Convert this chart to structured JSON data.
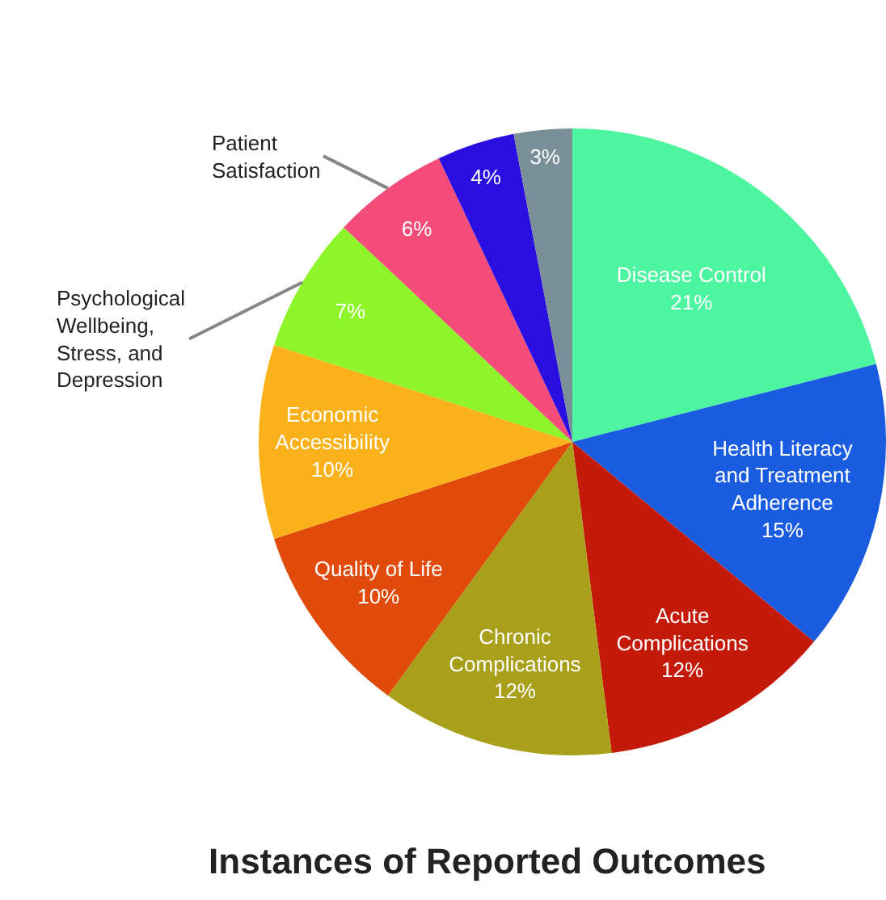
{
  "chart_data": {
    "type": "pie",
    "title": "Instances of Reported Outcomes",
    "categories": [
      "Disease Control",
      "Health Literacy and Treatment Adherence",
      "Acute Complications",
      "Chronic Complications",
      "Quality of Life",
      "Economic Accessibility",
      "Psychological Wellbeing, Stress, and Depression",
      "Patient Satisfaction",
      null,
      null
    ],
    "values": [
      21,
      15,
      12,
      12,
      10,
      10,
      7,
      6,
      4,
      3
    ],
    "colors": [
      "#4df5a0",
      "#1a5ce0",
      "#c41a0a",
      "#a8a01a",
      "#e04a0a",
      "#fbb21a",
      "#8ef52a",
      "#f54d7a",
      "#2a0ee0",
      "#7a9098"
    ],
    "value_labels": [
      "21%",
      "15%",
      "12%",
      "12%",
      "10%",
      "10%",
      "7%",
      "6%",
      "4%",
      "3%"
    ],
    "legend": false
  }
}
